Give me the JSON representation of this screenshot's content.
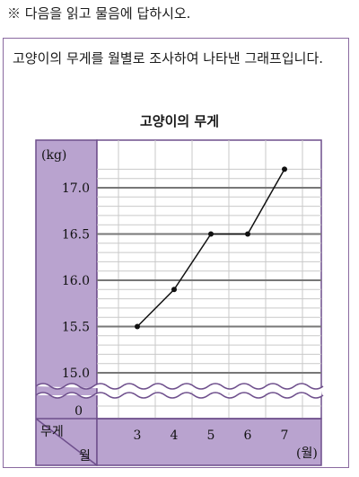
{
  "instruction": "※ 다음을 읽고 물음에 답하시오.",
  "question": "고양이의 무게를 월별로 조사하여 나타낸 그래프입니다.",
  "chart_data": {
    "type": "line",
    "title": "고양이의 무게",
    "ylabel": "(kg)",
    "xlabel": "(월)",
    "categories": [
      "3",
      "4",
      "5",
      "6",
      "7"
    ],
    "values": [
      15.5,
      15.9,
      16.5,
      16.5,
      17.2
    ],
    "ylim": [
      15.0,
      17.3
    ],
    "y_ticks": [
      "17.0",
      "16.5",
      "16.0",
      "15.5",
      "15.0"
    ],
    "y_zero": "0",
    "broken_axis": true,
    "grid": true,
    "corner_top": "무게",
    "corner_bottom": "월",
    "colors": {
      "panel": "#b9a3cf",
      "frame": "#6e4f8c",
      "grid": "#c9c9c9",
      "major_grid": "#777777",
      "line": "#111111"
    }
  }
}
